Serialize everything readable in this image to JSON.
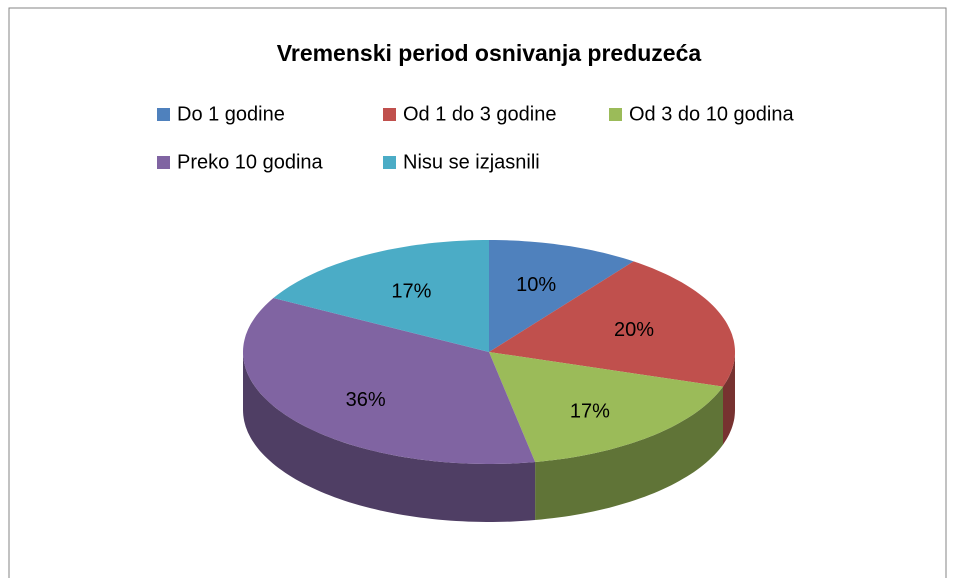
{
  "chart_data": {
    "type": "pie",
    "title": "Vremenski period osnivanja preduzeća",
    "categories": [
      "Do 1 godine",
      "Od 1 do 3 godine",
      "Od 3 do 10 godina",
      "Preko 10 godina",
      "Nisu se izjasnili"
    ],
    "values": [
      10,
      20,
      17,
      36,
      17
    ],
    "value_labels": [
      "10%",
      "20%",
      "17%",
      "36%",
      "17%"
    ],
    "colors": [
      "#4f81bd",
      "#c0504d",
      "#9bbb59",
      "#8064a2",
      "#4bacc6"
    ],
    "legend": "top"
  }
}
